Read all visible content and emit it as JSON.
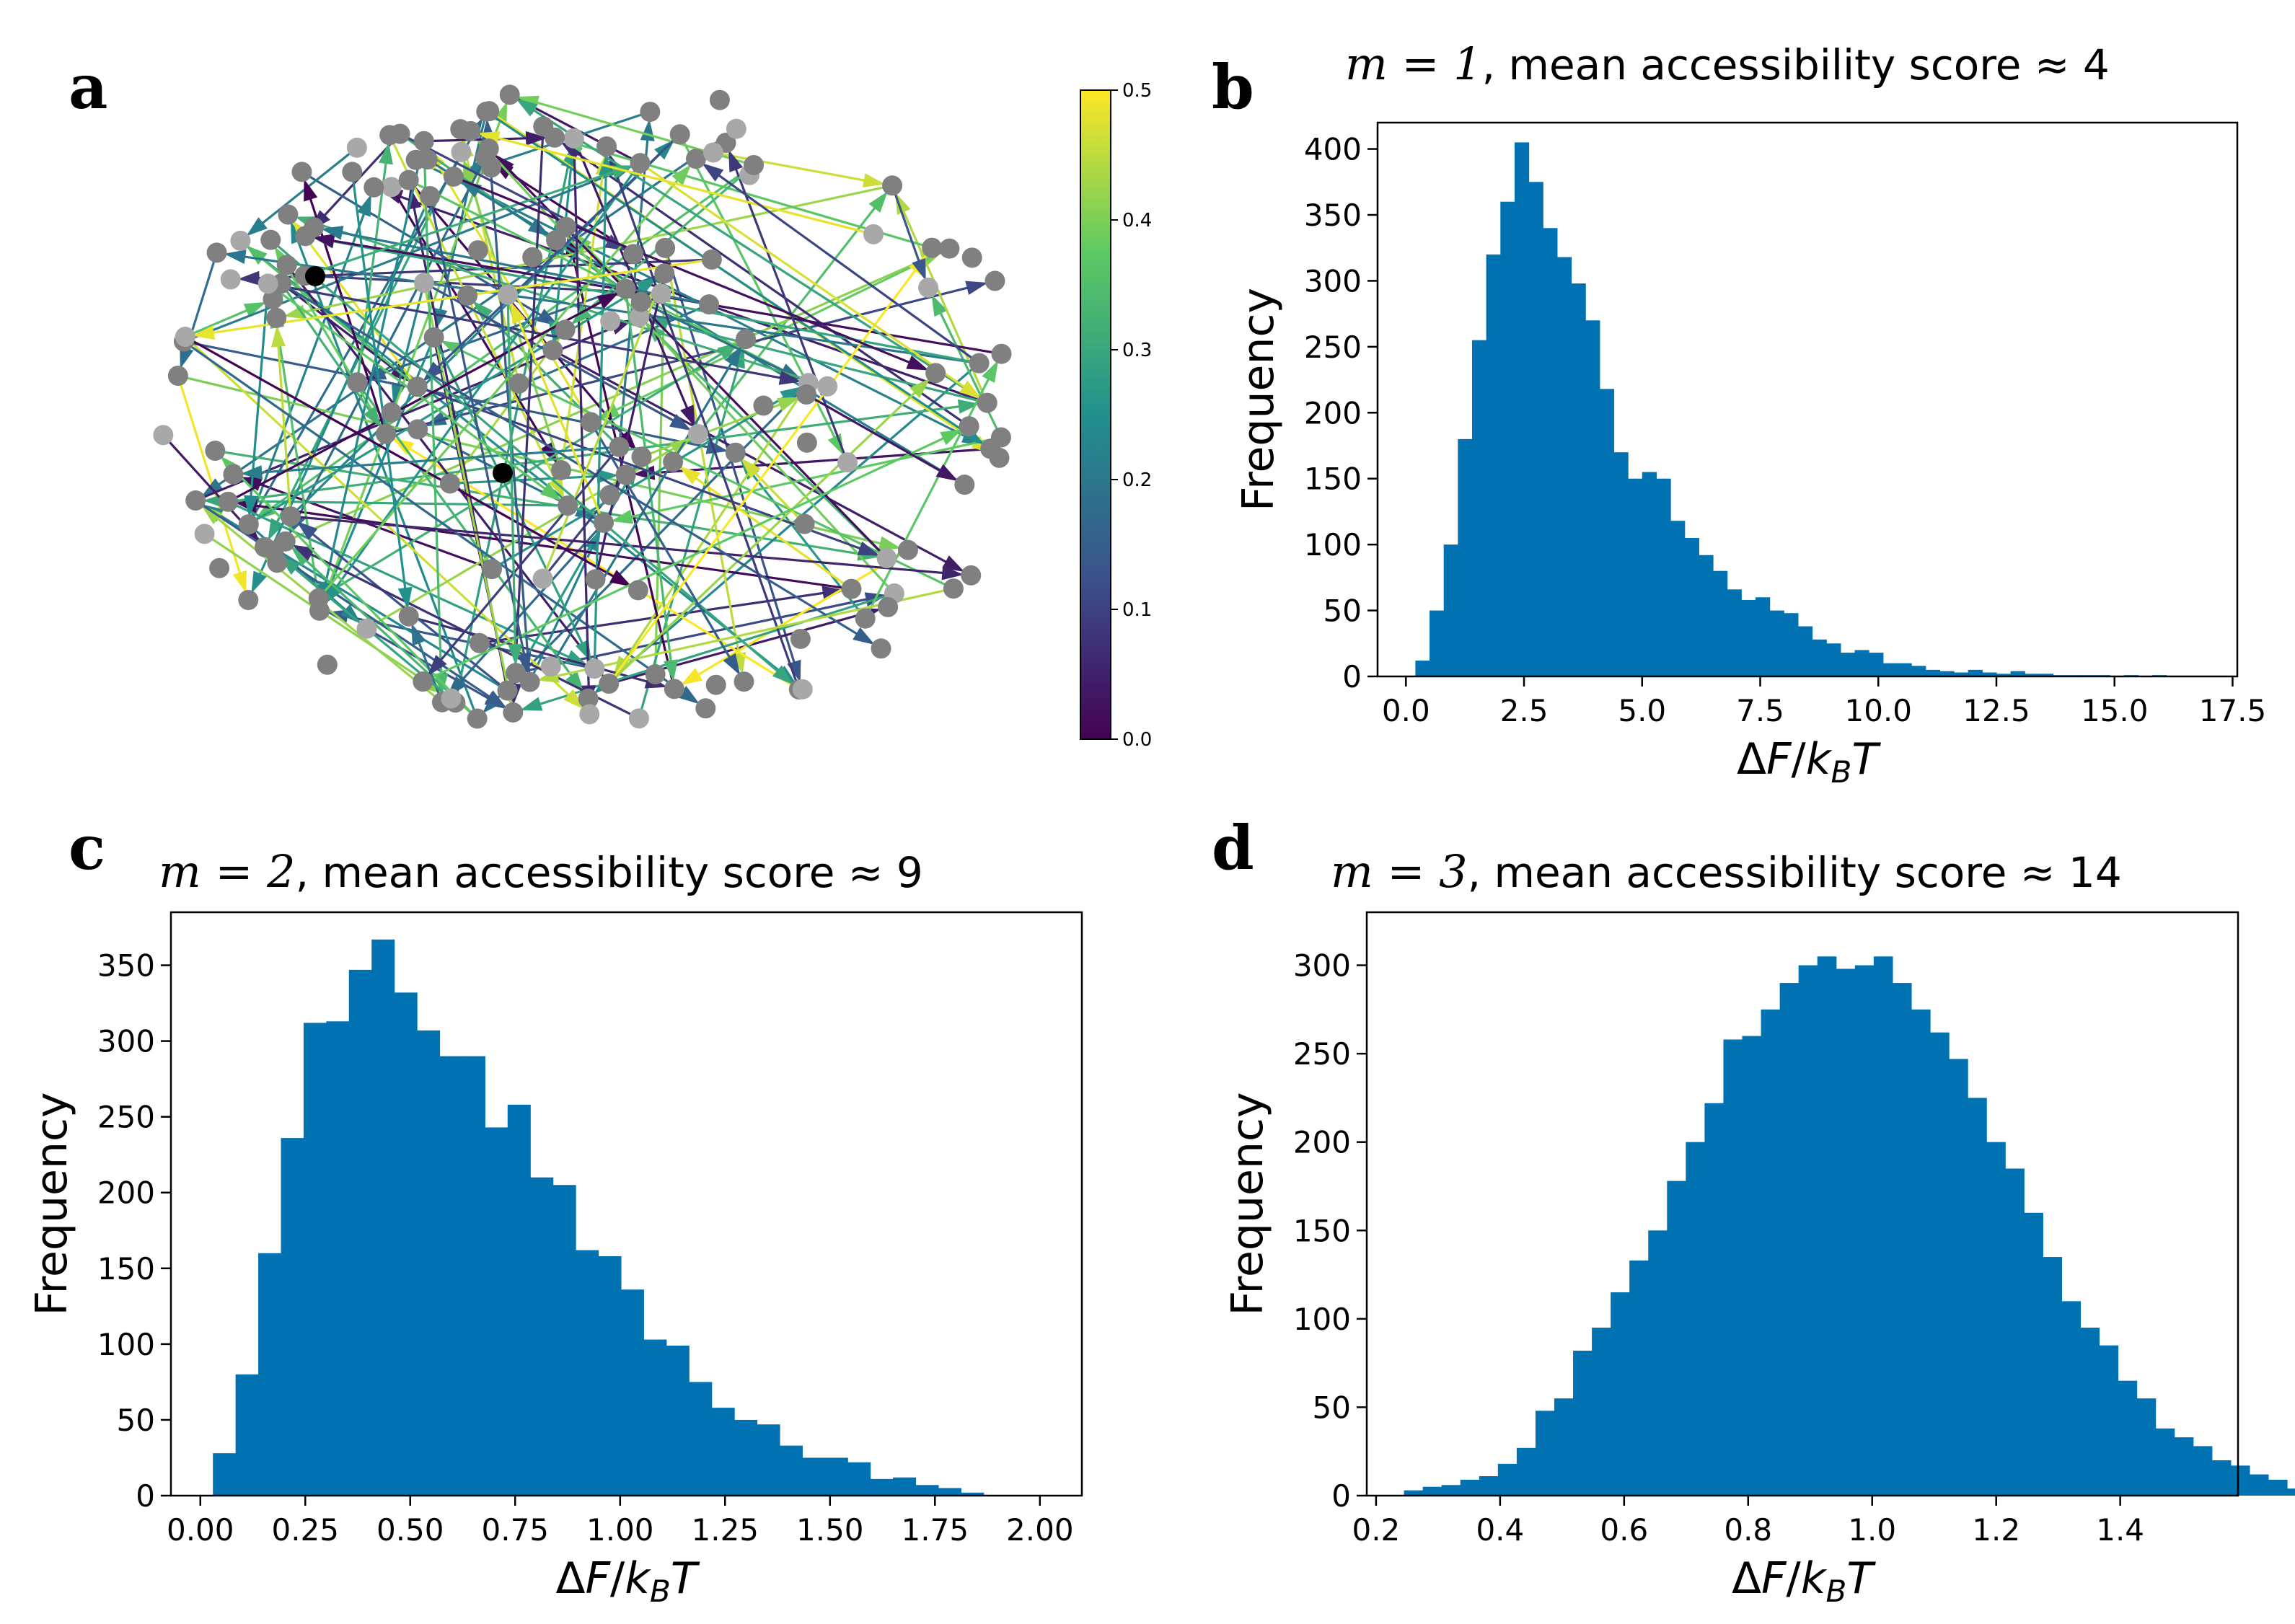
{
  "panels": [
    {
      "id": "a",
      "letter": "a"
    },
    {
      "id": "b",
      "letter": "b",
      "title_math": "m = 1",
      "title_rest": ", mean accessibility score ≈ 4"
    },
    {
      "id": "c",
      "letter": "c",
      "title_math": "m = 2",
      "title_rest": ", mean accessibility score ≈ 9"
    },
    {
      "id": "d",
      "letter": "d",
      "title_math": "m = 3",
      "title_rest": ", mean accessibility score ≈ 14"
    }
  ],
  "colorbar": {
    "ticks": [
      "0.0",
      "0.1",
      "0.2",
      "0.3",
      "0.4",
      "0.5"
    ],
    "colormap": [
      "#440154",
      "#3b528b",
      "#21908d",
      "#5dc963",
      "#fde725"
    ]
  },
  "network": {
    "node_color_gray": "#808080",
    "node_color_light": "#a8a8a8",
    "highlight_node_color": "#000000"
  },
  "chart_data": [
    {
      "panel": "b",
      "type": "bar",
      "title": "m = 1, mean accessibility score ≈ 4",
      "xlabel": "ΔF/k_BT",
      "ylabel": "Frequency",
      "xlim": [
        -0.6,
        17.6
      ],
      "ylim": [
        0,
        420
      ],
      "xticks": [
        "0.0",
        "2.5",
        "5.0",
        "7.5",
        "10.0",
        "12.5",
        "15.0",
        "17.5"
      ],
      "xtick_values": [
        0,
        2.5,
        5,
        7.5,
        10,
        12.5,
        15,
        17.5
      ],
      "yticks": [
        0,
        50,
        100,
        150,
        200,
        250,
        300,
        350,
        400
      ],
      "bar_color": "#0072b2",
      "bin_start": 0.2,
      "bin_width": 0.3,
      "values": [
        12,
        50,
        100,
        180,
        255,
        320,
        360,
        405,
        375,
        340,
        318,
        298,
        270,
        218,
        170,
        150,
        155,
        150,
        118,
        105,
        92,
        80,
        66,
        58,
        60,
        50,
        48,
        38,
        28,
        25,
        18,
        20,
        18,
        10,
        10,
        8,
        5,
        4,
        3,
        5,
        3,
        2,
        4,
        2,
        2,
        1,
        1,
        1,
        1,
        0,
        1,
        0,
        1,
        0,
        0,
        0
      ]
    },
    {
      "panel": "c",
      "type": "bar",
      "title": "m = 2, mean accessibility score ≈ 9",
      "xlabel": "ΔF/k_BT",
      "ylabel": "Frequency",
      "xlim": [
        -0.07,
        2.1
      ],
      "ylim": [
        0,
        385
      ],
      "xticks": [
        "0.00",
        "0.25",
        "0.50",
        "0.75",
        "1.00",
        "1.25",
        "1.50",
        "1.75",
        "2.00"
      ],
      "xtick_values": [
        0,
        0.25,
        0.5,
        0.75,
        1,
        1.25,
        1.5,
        1.75,
        2
      ],
      "yticks": [
        0,
        50,
        100,
        150,
        200,
        250,
        300,
        350
      ],
      "bar_color": "#0072b2",
      "bin_start": 0.03,
      "bin_width": 0.054,
      "values": [
        28,
        80,
        160,
        236,
        312,
        313,
        347,
        367,
        332,
        307,
        290,
        290,
        243,
        258,
        210,
        205,
        162,
        158,
        136,
        103,
        99,
        75,
        58,
        50,
        47,
        33,
        25,
        25,
        22,
        11,
        12,
        7,
        5,
        2
      ]
    },
    {
      "panel": "d",
      "type": "bar",
      "title": "m = 3, mean accessibility score ≈ 14",
      "xlabel": "ΔF/k_BT",
      "ylabel": "Frequency",
      "xlim": [
        0.185,
        1.59
      ],
      "ylim": [
        0,
        330
      ],
      "xticks": [
        "0.2",
        "0.4",
        "0.6",
        "0.8",
        "1.0",
        "1.2",
        "1.4"
      ],
      "xtick_values": [
        0.2,
        0.4,
        0.6,
        0.8,
        1.0,
        1.2,
        1.4
      ],
      "yticks": [
        0,
        50,
        100,
        150,
        200,
        250,
        300
      ],
      "bar_color": "#0072b2",
      "bin_start": 0.245,
      "bin_width": 0.0303,
      "values": [
        3,
        5,
        6,
        9,
        11,
        18,
        27,
        48,
        55,
        82,
        95,
        115,
        133,
        150,
        178,
        200,
        222,
        258,
        260,
        275,
        290,
        300,
        305,
        298,
        300,
        305,
        290,
        275,
        262,
        247,
        225,
        200,
        185,
        160,
        135,
        110,
        95,
        85,
        65,
        55,
        38,
        33,
        28,
        20,
        17,
        12,
        9,
        4
      ]
    }
  ]
}
